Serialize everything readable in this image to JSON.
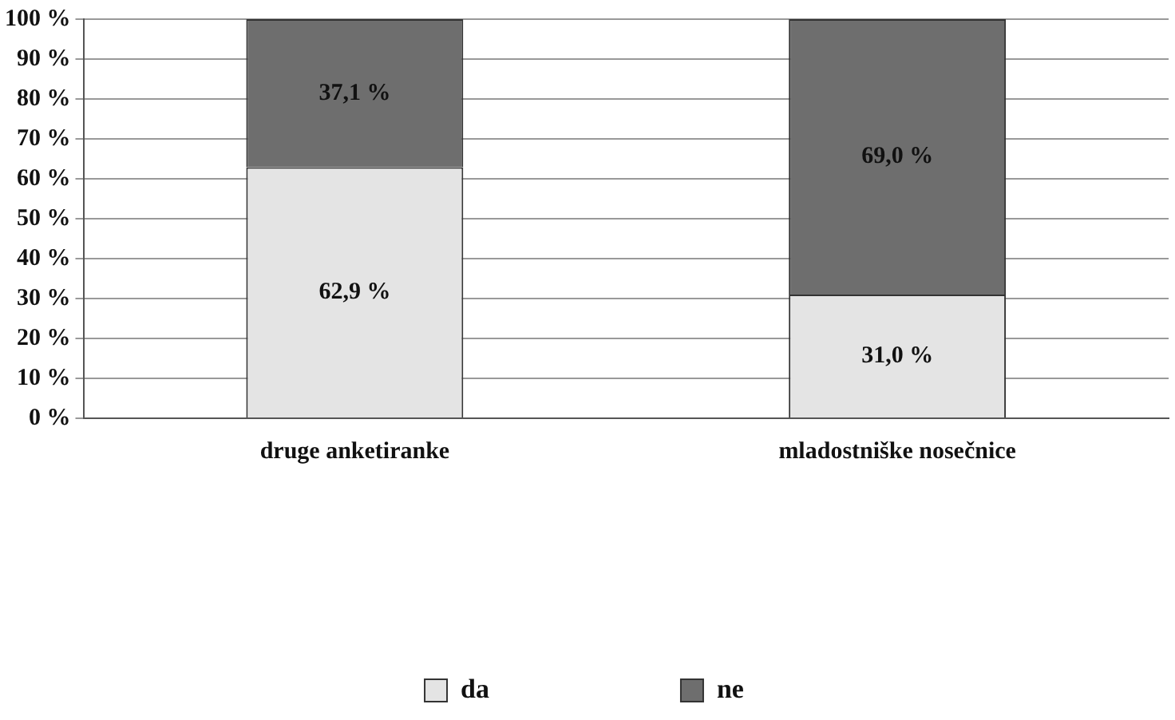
{
  "chart_data": {
    "type": "bar",
    "stacked": true,
    "categories": [
      "druge anketiranke",
      "mladostniške nosečnice"
    ],
    "series": [
      {
        "name": "da",
        "color": "#e4e4e4",
        "values": [
          62.9,
          31.0
        ],
        "value_labels": [
          "62,9 %",
          "31,0 %"
        ]
      },
      {
        "name": "ne",
        "color": "#6e6e6e",
        "values": [
          37.1,
          69.0
        ],
        "value_labels": [
          "37,1 %",
          "69,0 %"
        ]
      }
    ],
    "ylim": [
      0,
      100
    ],
    "yticks": [
      {
        "value": 0,
        "label": "0 %"
      },
      {
        "value": 10,
        "label": "10 %"
      },
      {
        "value": 20,
        "label": "20 %"
      },
      {
        "value": 30,
        "label": "30 %"
      },
      {
        "value": 40,
        "label": "40 %"
      },
      {
        "value": 50,
        "label": "50 %"
      },
      {
        "value": 60,
        "label": "60 %"
      },
      {
        "value": 70,
        "label": "70 %"
      },
      {
        "value": 80,
        "label": "80 %"
      },
      {
        "value": 90,
        "label": "90 %"
      },
      {
        "value": 100,
        "label": "100 %"
      }
    ],
    "grid": "y",
    "legend": "bottom"
  }
}
